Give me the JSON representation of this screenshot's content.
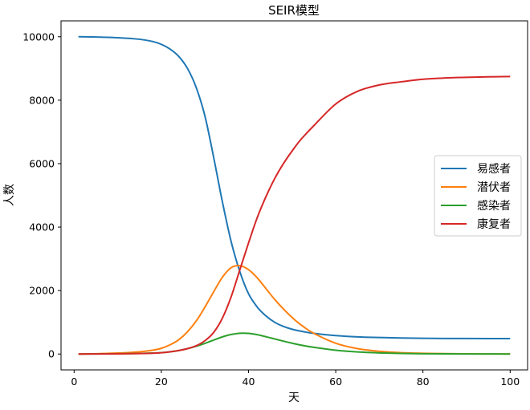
{
  "chart_data": {
    "type": "line",
    "title": "SEIR模型",
    "xlabel": "天",
    "ylabel": "人数",
    "xlim": [
      -3,
      104
    ],
    "ylim": [
      -500,
      10500
    ],
    "xticks": [
      0,
      20,
      40,
      60,
      80,
      100
    ],
    "yticks": [
      0,
      2000,
      4000,
      6000,
      8000,
      10000
    ],
    "grid": false,
    "legend_position": "center-right",
    "x": [
      1,
      5,
      10,
      15,
      18,
      20,
      22,
      24,
      26,
      28,
      30,
      32,
      34,
      36,
      38,
      40,
      42,
      44,
      46,
      48,
      50,
      52,
      55,
      60,
      65,
      70,
      75,
      80,
      85,
      90,
      95,
      100
    ],
    "series": [
      {
        "name": "易感者",
        "color": "#1f77b4",
        "values": [
          10000,
          9990,
          9970,
          9920,
          9850,
          9760,
          9610,
          9380,
          9000,
          8400,
          7500,
          6200,
          4800,
          3550,
          2600,
          1900,
          1480,
          1200,
          1000,
          870,
          780,
          720,
          650,
          580,
          540,
          520,
          505,
          495,
          490,
          488,
          486,
          485
        ]
      },
      {
        "name": "潜伏者",
        "color": "#ff7f0e",
        "values": [
          0,
          10,
          30,
          70,
          120,
          180,
          290,
          450,
          700,
          1040,
          1480,
          1960,
          2420,
          2720,
          2780,
          2660,
          2400,
          2060,
          1720,
          1420,
          1150,
          920,
          650,
          340,
          170,
          85,
          42,
          22,
          11,
          6,
          3,
          2
        ]
      },
      {
        "name": "感染者",
        "color": "#2ca02c",
        "values": [
          0,
          3,
          8,
          18,
          30,
          45,
          70,
          110,
          170,
          245,
          335,
          440,
          540,
          615,
          655,
          650,
          610,
          545,
          475,
          405,
          340,
          280,
          210,
          120,
          65,
          35,
          18,
          10,
          5,
          3,
          2,
          1
        ]
      },
      {
        "name": "康复者",
        "color": "#d62728",
        "values": [
          0,
          2,
          5,
          15,
          25,
          40,
          70,
          110,
          170,
          260,
          420,
          680,
          1130,
          1800,
          2650,
          3500,
          4300,
          4960,
          5530,
          6000,
          6400,
          6760,
          7200,
          7880,
          8280,
          8480,
          8580,
          8660,
          8700,
          8720,
          8735,
          8745
        ]
      }
    ]
  }
}
